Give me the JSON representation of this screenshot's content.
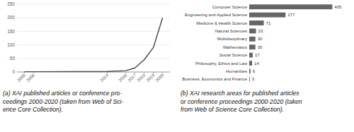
{
  "chart_data": [
    {
      "type": "line",
      "title": "(a) XAI published articles or conference pro-\nceedings 2000-2020 (taken from Web of Sci-\nence Core Collection).",
      "x": [
        2005,
        2006,
        2014,
        2016,
        2017,
        2018,
        2019,
        2020
      ],
      "values": [
        1,
        1,
        2,
        5,
        15,
        45,
        90,
        200
      ],
      "color": "#444444",
      "xlim": [
        2004.2,
        2020.8
      ],
      "xticks": [
        2005,
        2006,
        2014,
        2016,
        2017,
        2018,
        2019,
        2020
      ],
      "ylim": [
        0,
        250
      ],
      "yticks": [
        0,
        50,
        100,
        150,
        200,
        250
      ],
      "grid": true
    },
    {
      "type": "bar",
      "orientation": "horizontal",
      "title": "(b) XAI research areas for published articles\nor conference proceedings 2000-2020 (taken\nfrom Web of Science Core Collection).",
      "categories": [
        "Computer Science",
        "Engineering and Applied Science",
        "Medicine & Health Science",
        "Natural Sciences",
        "Multidisciplinary",
        "Mathematics",
        "Social Science",
        "Philosophy, Ethics and Law",
        "Humanities",
        "Business, Economics and Finance"
      ],
      "values": [
        405,
        177,
        71,
        33,
        30,
        30,
        17,
        14,
        6,
        3
      ],
      "color": "#666666",
      "xlim": [
        0,
        490
      ],
      "data_labels": true,
      "tick_labels": "y"
    }
  ]
}
